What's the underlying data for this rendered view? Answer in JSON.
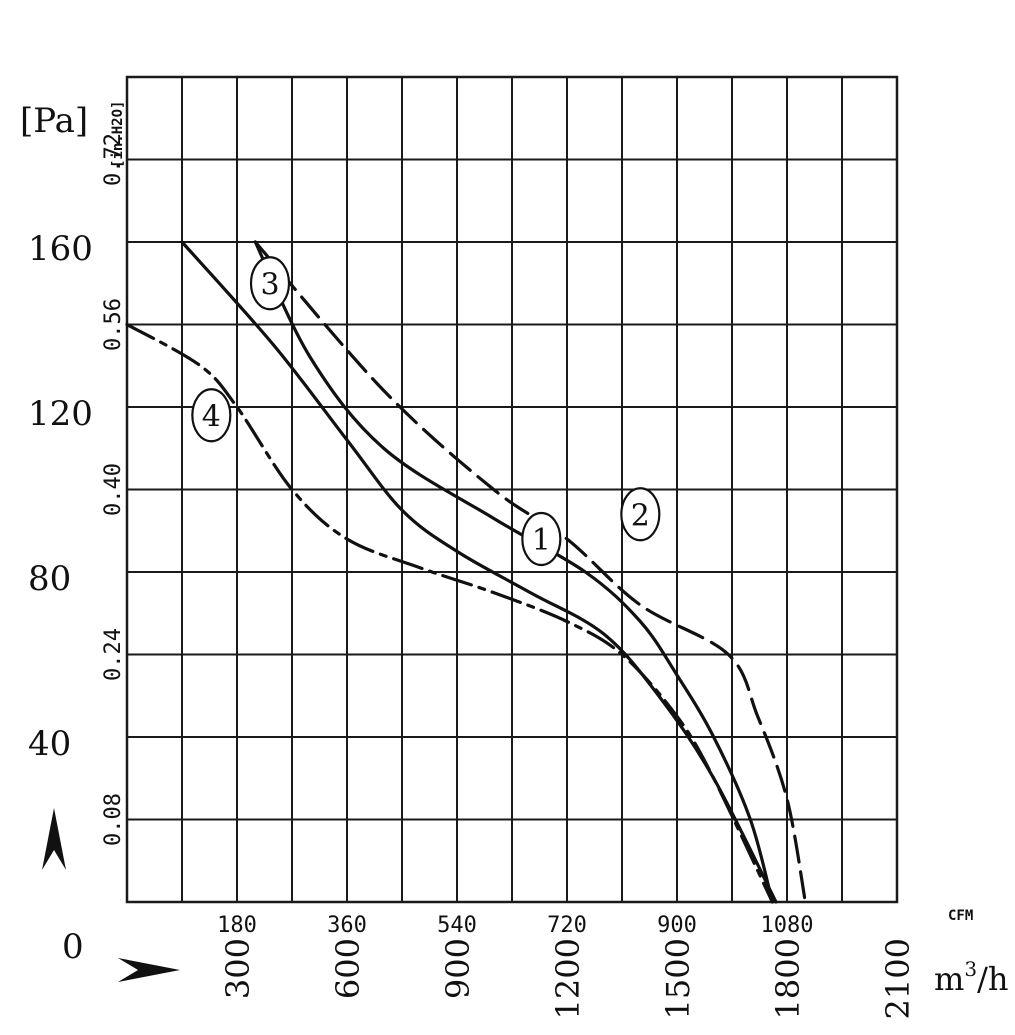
{
  "chart_data": {
    "type": "line",
    "title": "",
    "ylabel_left": "[Pa]",
    "ylabel_right": "[in.H2O]",
    "y_pa_ticks": [
      "0",
      "40",
      "80",
      "120",
      "160"
    ],
    "y_inh2o_ticks": [
      "0.08",
      "0.24",
      "0.40",
      "0.56",
      "0.72"
    ],
    "x_cfm_unit": "CFM",
    "x_cfm_ticks": [
      "180",
      "360",
      "540",
      "720",
      "900",
      "1080"
    ],
    "x_m3h_unit": "m3/h",
    "x_m3h_ticks": [
      "300",
      "600",
      "900",
      "1200",
      "1500",
      "1800",
      "2100"
    ],
    "xlim_m3h": [
      0,
      2100
    ],
    "ylim_pa": [
      0,
      200
    ],
    "grid": true,
    "series": [
      {
        "name": "1",
        "style": "solid",
        "points": [
          [
            350,
            160
          ],
          [
            500,
            132
          ],
          [
            700,
            110
          ],
          [
            1000,
            93
          ],
          [
            1250,
            80
          ],
          [
            1400,
            68
          ],
          [
            1500,
            55
          ],
          [
            1600,
            40
          ],
          [
            1700,
            20
          ],
          [
            1760,
            0
          ]
        ]
      },
      {
        "name": "2",
        "style": "dashed",
        "points": [
          [
            350,
            160
          ],
          [
            700,
            124
          ],
          [
            1000,
            100
          ],
          [
            1200,
            88
          ],
          [
            1400,
            72
          ],
          [
            1640,
            60
          ],
          [
            1720,
            45
          ],
          [
            1800,
            25
          ],
          [
            1850,
            0
          ]
        ]
      },
      {
        "name": "3",
        "style": "solid",
        "points": [
          [
            150,
            160
          ],
          [
            400,
            135
          ],
          [
            600,
            112
          ],
          [
            750,
            95
          ],
          [
            900,
            85
          ],
          [
            1100,
            75
          ],
          [
            1300,
            65
          ],
          [
            1450,
            50
          ],
          [
            1600,
            30
          ],
          [
            1770,
            0
          ]
        ]
      },
      {
        "name": "4",
        "style": "dash-dot",
        "points": [
          [
            0,
            140
          ],
          [
            200,
            130
          ],
          [
            300,
            120
          ],
          [
            450,
            100
          ],
          [
            600,
            88
          ],
          [
            800,
            81
          ],
          [
            1000,
            75
          ],
          [
            1200,
            68
          ],
          [
            1350,
            60
          ],
          [
            1500,
            45
          ],
          [
            1600,
            30
          ],
          [
            1760,
            0
          ]
        ]
      }
    ]
  }
}
